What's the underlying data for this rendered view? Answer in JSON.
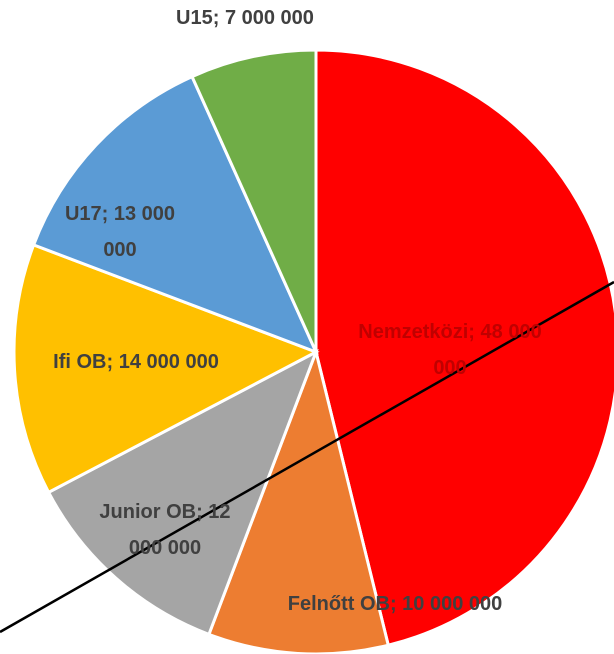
{
  "chart_data": {
    "type": "pie",
    "categories": [
      "Nemzetközi",
      "Felnőtt OB",
      "Junior OB",
      "Ifi OB",
      "U17",
      "U15"
    ],
    "values": [
      48000000,
      10000000,
      12000000,
      14000000,
      13000000,
      7000000
    ],
    "value_labels": [
      "Nemzetközi; 48 000 000",
      "Felnőtt OB; 10 000 000",
      "Junior OB; 12 000 000",
      "Ifi OB; 14 000 000",
      "U17; 13 000 000",
      "U15; 7 000 000"
    ],
    "colors": [
      "#ff0000",
      "#ed7d31",
      "#a5a5a5",
      "#ffc000",
      "#5b9bd5",
      "#70ad47"
    ]
  }
}
